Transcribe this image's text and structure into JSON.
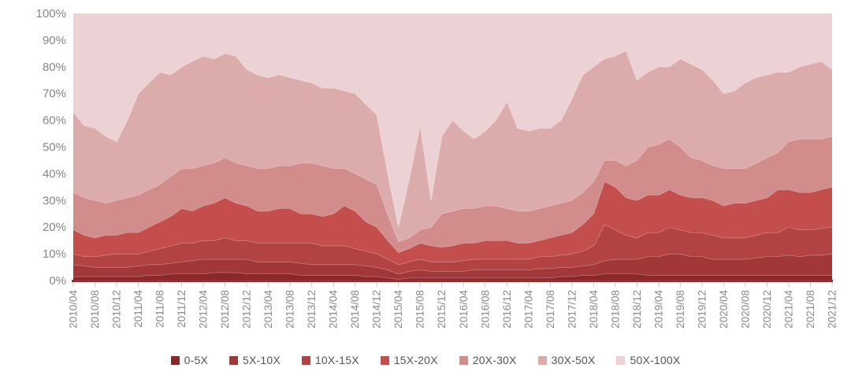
{
  "chart_data": {
    "type": "area",
    "stacked": true,
    "title": "",
    "xlabel": "",
    "ylabel": "",
    "ylim": [
      0,
      100
    ],
    "grid": false,
    "legend_position": "bottom",
    "ytick_labels": [
      "0%",
      "10%",
      "20%",
      "30%",
      "40%",
      "50%",
      "60%",
      "70%",
      "80%",
      "90%",
      "100%"
    ],
    "x_label_every": 2,
    "x": [
      "2010/04",
      "2010/06",
      "2010/08",
      "2010/10",
      "2010/12",
      "2011/02",
      "2011/04",
      "2011/06",
      "2011/08",
      "2011/10",
      "2011/12",
      "2012/02",
      "2012/04",
      "2012/06",
      "2012/08",
      "2012/10",
      "2012/12",
      "2013/02",
      "2013/04",
      "2013/06",
      "2013/08",
      "2013/10",
      "2013/12",
      "2014/02",
      "2014/04",
      "2014/06",
      "2014/08",
      "2014/10",
      "2014/12",
      "2015/02",
      "2015/04",
      "2015/06",
      "2015/08",
      "2015/10",
      "2015/12",
      "2016/02",
      "2016/04",
      "2016/06",
      "2016/08",
      "2016/10",
      "2016/12",
      "2017/02",
      "2017/04",
      "2017/06",
      "2017/08",
      "2017/10",
      "2017/12",
      "2018/02",
      "2018/04",
      "2018/06",
      "2018/08",
      "2018/10",
      "2018/12",
      "2019/02",
      "2019/04",
      "2019/06",
      "2019/08",
      "2019/10",
      "2019/12",
      "2020/02",
      "2020/04",
      "2020/06",
      "2020/08",
      "2020/10",
      "2020/12",
      "2021/02",
      "2021/04",
      "2021/06",
      "2021/08",
      "2021/10",
      "2021/12"
    ],
    "series": [
      {
        "name": "0-5X",
        "color": "#8a2829",
        "values": [
          1.5,
          1.5,
          1.5,
          1.5,
          1.5,
          1.5,
          1.5,
          2,
          2,
          2.5,
          2.5,
          2.5,
          2.5,
          3,
          3,
          3,
          2.5,
          2.5,
          2.5,
          2.5,
          2.5,
          2,
          2,
          2,
          2,
          2,
          2,
          1.5,
          1.5,
          1,
          0.5,
          1,
          1,
          1,
          1,
          1,
          1,
          1,
          1,
          1,
          1,
          1,
          1,
          1,
          1,
          1.5,
          1.5,
          2,
          2,
          2.5,
          2.5,
          2.5,
          2.5,
          2,
          2,
          2,
          2,
          2,
          2,
          2,
          2,
          2,
          2,
          2,
          2,
          2,
          2,
          2,
          2,
          2,
          2
        ]
      },
      {
        "name": "5X-10X",
        "color": "#a23739",
        "values": [
          4.5,
          4,
          3.5,
          3.5,
          3.5,
          3.5,
          4,
          4,
          4,
          4,
          4.5,
          5,
          5.5,
          5,
          5,
          5,
          5.5,
          4.5,
          4.5,
          4.5,
          4.5,
          4.5,
          4,
          4,
          4,
          4,
          4,
          4,
          3.5,
          3,
          2,
          2.5,
          3,
          2.5,
          2.5,
          2.5,
          2.5,
          3,
          3,
          3,
          3,
          3,
          3,
          3.5,
          3.5,
          3.5,
          3.5,
          3.5,
          4,
          5,
          5.5,
          5.5,
          5.5,
          7,
          7,
          8,
          8,
          7,
          7,
          6,
          6,
          6,
          6,
          6.5,
          7,
          7,
          7.5,
          7,
          7.5,
          7.5,
          8
        ]
      },
      {
        "name": "10X-15X",
        "color": "#b34343",
        "values": [
          4,
          3.5,
          4,
          4.5,
          5,
          5,
          4.5,
          5,
          6,
          6.5,
          7,
          6.5,
          7,
          7,
          8,
          7,
          7,
          7,
          7,
          7,
          7,
          7.5,
          8,
          7,
          7,
          7,
          6,
          5.5,
          5,
          4,
          3.5,
          3.5,
          4,
          3.5,
          3.5,
          3.5,
          4,
          4,
          4,
          4,
          4,
          4,
          4,
          4.5,
          4.5,
          4.5,
          5,
          5.5,
          7,
          13.5,
          11,
          9,
          8,
          9,
          9,
          10,
          9,
          9,
          9,
          9,
          8,
          8,
          8,
          8.5,
          9,
          9,
          10.5,
          10,
          9.5,
          10,
          10
        ]
      },
      {
        "name": "15X-20X",
        "color": "#c44e4c",
        "values": [
          9,
          8,
          7,
          7.5,
          7,
          8,
          8,
          9,
          10,
          11,
          13,
          12,
          13,
          14,
          15,
          14,
          13,
          12,
          12,
          13,
          13,
          11,
          11,
          11,
          12,
          15,
          14,
          11,
          10,
          7,
          4.5,
          5,
          6,
          6,
          5.5,
          6,
          6.5,
          6,
          7,
          7,
          7,
          6,
          6,
          6,
          7,
          7.5,
          8,
          10,
          12,
          16,
          16,
          14,
          14,
          14,
          14,
          14,
          13,
          13,
          13,
          13,
          12,
          13,
          13,
          13,
          13,
          16,
          14,
          14,
          14,
          14.5,
          15
        ]
      },
      {
        "name": "20X-30X",
        "color": "#d28c8c",
        "values": [
          14,
          14,
          14,
          12,
          13,
          13,
          14,
          14,
          14,
          15,
          15,
          16,
          15,
          15,
          15,
          15,
          15,
          16,
          16,
          16,
          16,
          19,
          19,
          19,
          17,
          14,
          14,
          16,
          16,
          10,
          4,
          4,
          5,
          7,
          12.5,
          13,
          13,
          13,
          13,
          13,
          12,
          12,
          12,
          12,
          12,
          12,
          12,
          12,
          12,
          8,
          10,
          12,
          15,
          18,
          19,
          19,
          18,
          15,
          14,
          13,
          14,
          13,
          13,
          14,
          15,
          14,
          18,
          20,
          20,
          19,
          19
        ]
      },
      {
        "name": "30X-50X",
        "color": "#dcabac",
        "values": [
          30,
          27,
          27,
          25,
          22,
          29,
          38,
          40,
          42,
          38,
          38,
          40,
          41,
          39,
          39,
          40,
          36,
          35,
          34,
          34,
          33,
          31,
          30,
          29,
          30,
          29,
          30,
          28,
          26,
          15,
          5.5,
          22,
          39,
          10,
          29,
          34,
          29,
          26,
          28,
          32,
          40,
          31,
          30,
          30,
          29,
          31,
          38,
          44,
          43,
          38,
          39,
          43,
          30,
          28,
          29,
          27,
          33,
          35,
          34,
          32,
          28,
          29,
          32,
          32,
          31,
          30,
          26,
          27,
          28,
          29,
          25
        ]
      },
      {
        "name": "50X-100X",
        "color": "#ecd2d4",
        "values": [
          37,
          42,
          43,
          46,
          48,
          40,
          30,
          26,
          22,
          23,
          20,
          18,
          16,
          17,
          15,
          16,
          21,
          23,
          24,
          23,
          24,
          25,
          26,
          28,
          28,
          29,
          30,
          34,
          38,
          60,
          80,
          62,
          42,
          70,
          46,
          40,
          44,
          47,
          44,
          40,
          33,
          43,
          44,
          43,
          43,
          40,
          32,
          23,
          20,
          17,
          16,
          14,
          25,
          22,
          20,
          20,
          17,
          19,
          21,
          25,
          30,
          29,
          26,
          24,
          23,
          22,
          22,
          20,
          19,
          18,
          21
        ]
      }
    ],
    "axis_line_color": "#8d3233",
    "tick_color": "#cccccc",
    "boundary_stroke": "rgba(255,255,255,0.42)"
  }
}
